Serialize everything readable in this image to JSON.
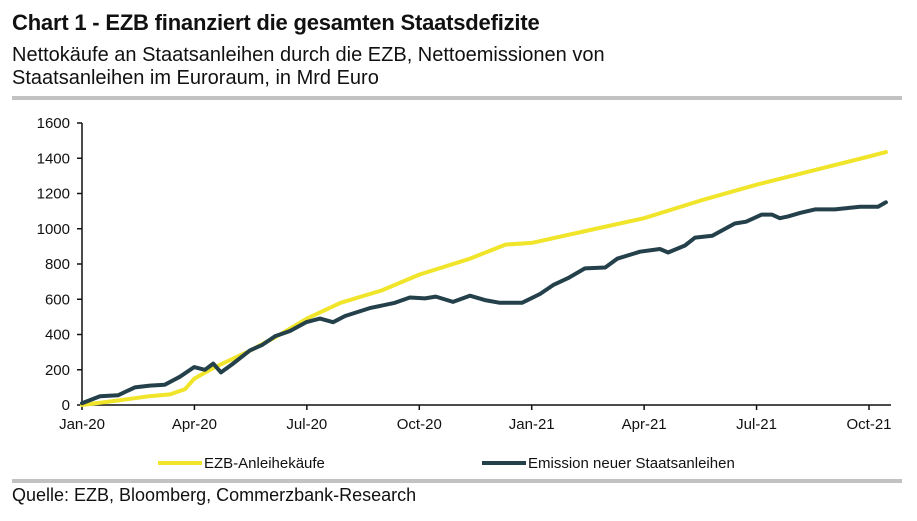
{
  "header": {
    "title": "Chart 1 - EZB finanziert die gesamten Staatsdefizite",
    "subtitle_line1": "Nettokäufe an Staatsanleihen durch die EZB, Nettoemissionen von",
    "subtitle_line2": "Staatsanleihen im Euroraum, in Mrd Euro"
  },
  "footer": {
    "source": "Quelle: EZB, Bloomberg, Commerzbank-Research"
  },
  "chart_data": {
    "type": "line",
    "title": "Chart 1 - EZB finanziert die gesamten Staatsdefizite",
    "subtitle": "Nettokäufe an Staatsanleihen durch die EZB, Nettoemissionen von Staatsanleihen im Euroraum, in Mrd Euro",
    "xlabel": "",
    "ylabel": "Mrd Euro",
    "x_unit": "months since Jan-20",
    "xlim": [
      0,
      21.6
    ],
    "ylim": [
      0,
      1600
    ],
    "yticks": [
      0,
      200,
      400,
      600,
      800,
      1000,
      1200,
      1400,
      1600
    ],
    "xticks": [
      {
        "x": 0,
        "label": "Jan-20"
      },
      {
        "x": 3,
        "label": "Apr-20"
      },
      {
        "x": 6,
        "label": "Jul-20"
      },
      {
        "x": 9,
        "label": "Oct-20"
      },
      {
        "x": 12,
        "label": "Jan-21"
      },
      {
        "x": 15,
        "label": "Apr-21"
      },
      {
        "x": 18,
        "label": "Jul-21"
      },
      {
        "x": 21,
        "label": "Oct-21"
      }
    ],
    "grid": false,
    "legend_position": "bottom",
    "series": [
      {
        "name": "EZB-Anleihekäufe",
        "color": "#f0e52a",
        "points": [
          [
            0,
            0
          ],
          [
            0.75,
            20
          ],
          [
            1.8,
            50
          ],
          [
            2.35,
            60
          ],
          [
            2.75,
            90
          ],
          [
            3.0,
            150
          ],
          [
            3.5,
            210
          ],
          [
            4.5,
            310
          ],
          [
            5.2,
            390
          ],
          [
            6.0,
            490
          ],
          [
            6.9,
            580
          ],
          [
            8.0,
            650
          ],
          [
            9.0,
            740
          ],
          [
            10.35,
            830
          ],
          [
            11.3,
            910
          ],
          [
            12.0,
            920
          ],
          [
            13.5,
            990
          ],
          [
            15.0,
            1060
          ],
          [
            16.5,
            1160
          ],
          [
            18.0,
            1250
          ],
          [
            19.5,
            1330
          ],
          [
            21.0,
            1410
          ],
          [
            21.45,
            1435
          ]
        ]
      },
      {
        "name": "Emission neuer Staatsanleihen",
        "color": "#24404a",
        "points": [
          [
            0,
            10
          ],
          [
            0.48,
            50
          ],
          [
            0.96,
            55
          ],
          [
            1.41,
            100
          ],
          [
            1.81,
            110
          ],
          [
            2.21,
            115
          ],
          [
            2.61,
            160
          ],
          [
            2.99,
            215
          ],
          [
            3.28,
            200
          ],
          [
            3.5,
            235
          ],
          [
            3.71,
            185
          ],
          [
            4.0,
            230
          ],
          [
            4.48,
            310
          ],
          [
            4.8,
            340
          ],
          [
            5.15,
            390
          ],
          [
            5.55,
            420
          ],
          [
            5.98,
            470
          ],
          [
            6.35,
            490
          ],
          [
            6.7,
            470
          ],
          [
            7.02,
            505
          ],
          [
            7.68,
            550
          ],
          [
            8.35,
            580
          ],
          [
            8.75,
            610
          ],
          [
            9.15,
            605
          ],
          [
            9.44,
            615
          ],
          [
            9.9,
            585
          ],
          [
            10.35,
            620
          ],
          [
            10.75,
            595
          ],
          [
            11.15,
            580
          ],
          [
            11.74,
            580
          ],
          [
            12.22,
            630
          ],
          [
            12.57,
            680
          ],
          [
            12.97,
            720
          ],
          [
            13.42,
            775
          ],
          [
            13.96,
            780
          ],
          [
            14.28,
            830
          ],
          [
            14.89,
            870
          ],
          [
            15.42,
            885
          ],
          [
            15.64,
            865
          ],
          [
            16.09,
            905
          ],
          [
            16.36,
            950
          ],
          [
            16.82,
            960
          ],
          [
            17.42,
            1030
          ],
          [
            17.72,
            1040
          ],
          [
            18.14,
            1080
          ],
          [
            18.41,
            1080
          ],
          [
            18.62,
            1060
          ],
          [
            18.84,
            1070
          ],
          [
            19.16,
            1090
          ],
          [
            19.56,
            1110
          ],
          [
            20.09,
            1110
          ],
          [
            20.76,
            1125
          ],
          [
            21.24,
            1125
          ],
          [
            21.45,
            1150
          ]
        ]
      }
    ]
  }
}
